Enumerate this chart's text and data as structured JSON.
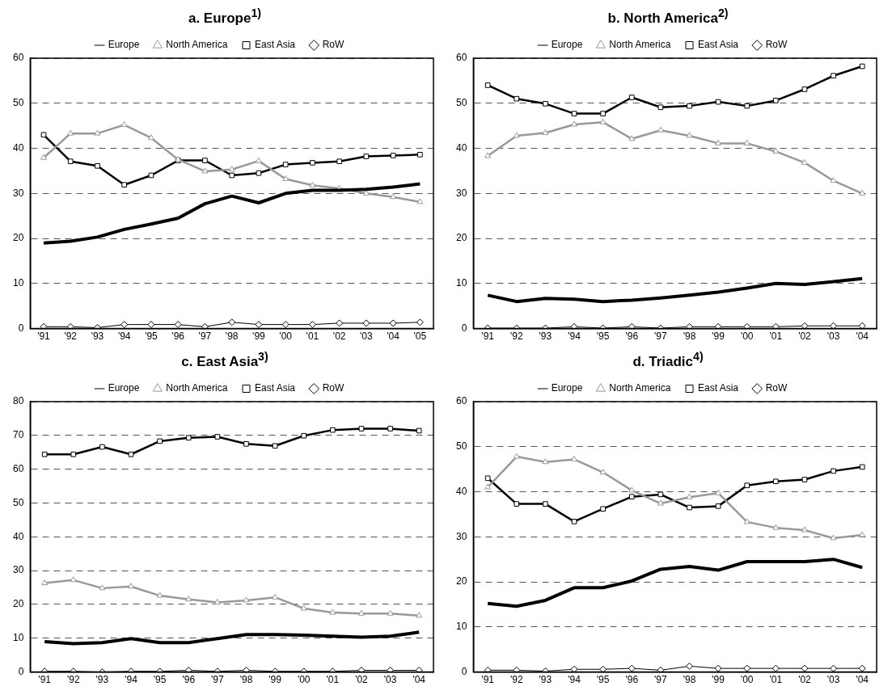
{
  "chart_data": [
    {
      "type": "line",
      "title": "a. Europe$^{1)}$",
      "categories": [
        "'91",
        "'92",
        "'93",
        "'94",
        "'95",
        "'96",
        "'97",
        "'98",
        "'99",
        "'00",
        "'01",
        "'02",
        "'03",
        "'04",
        "'05"
      ],
      "ylim": [
        0,
        60
      ],
      "yticks": [
        0,
        10,
        20,
        30,
        40,
        50,
        60
      ],
      "grid": "y",
      "legend": "top",
      "series": [
        {
          "name": "Europe",
          "color": "#000000",
          "marker": "none",
          "values": [
            19,
            19.4,
            20.3,
            22,
            23.2,
            24.5,
            27.7,
            29.4,
            27.9,
            30,
            30.7,
            30.7,
            30.9,
            31.4,
            32.1
          ]
        },
        {
          "name": "North America",
          "color": "#999999",
          "marker": "triangle",
          "values": [
            37.9,
            43.3,
            43.3,
            45.2,
            42.3,
            37.5,
            34.9,
            35.3,
            37.2,
            33.2,
            31.8,
            31.1,
            30,
            29.2,
            28.1
          ]
        },
        {
          "name": "East Asia",
          "color": "#000000",
          "marker": "square",
          "values": [
            43,
            37.1,
            36.1,
            31.9,
            34,
            37.3,
            37.3,
            34,
            34.5,
            36.4,
            36.8,
            37.1,
            38.2,
            38.4,
            38.6
          ]
        },
        {
          "name": "RoW",
          "color": "#000000",
          "marker": "diamond",
          "values": [
            0.4,
            0.4,
            0.2,
            0.9,
            0.9,
            0.9,
            0.4,
            1.4,
            0.9,
            0.9,
            0.9,
            1.2,
            1.2,
            1.2,
            1.4
          ]
        }
      ]
    },
    {
      "type": "line",
      "title": "b. North America$^{2)}$",
      "categories": [
        "'91",
        "'92",
        "'93",
        "'94",
        "'95",
        "'96",
        "'97",
        "'98",
        "'99",
        "'00",
        "'01",
        "'02",
        "'03",
        "'04"
      ],
      "ylim": [
        0,
        60
      ],
      "yticks": [
        0,
        10,
        20,
        30,
        40,
        50,
        60
      ],
      "grid": "y",
      "legend": "top",
      "series": [
        {
          "name": "Europe",
          "color": "#000000",
          "marker": "none",
          "values": [
            7.4,
            6,
            6.7,
            6.5,
            6,
            6.3,
            6.8,
            7.4,
            8.1,
            9,
            10,
            9.8,
            10.4,
            11.1
          ]
        },
        {
          "name": "North America",
          "color": "#999999",
          "marker": "triangle",
          "values": [
            38.3,
            42.8,
            43.4,
            45.3,
            45.8,
            42.1,
            44,
            42.8,
            41.1,
            41.1,
            39.3,
            36.8,
            32.8,
            30
          ]
        },
        {
          "name": "East Asia",
          "color": "#000000",
          "marker": "square",
          "values": [
            54,
            51,
            49.9,
            47.7,
            47.7,
            51.3,
            49.1,
            49.4,
            50.3,
            49.4,
            50.6,
            53.1,
            56.1,
            58.2
          ]
        },
        {
          "name": "RoW",
          "color": "#000000",
          "marker": "diamond",
          "values": [
            0.1,
            0.1,
            0.1,
            0.4,
            0.1,
            0.4,
            0.1,
            0.4,
            0.4,
            0.4,
            0.4,
            0.6,
            0.6,
            0.6
          ]
        }
      ]
    },
    {
      "type": "line",
      "title": "c. East Asia$^{3)}$",
      "categories": [
        "'91",
        "'92",
        "'93",
        "'94",
        "'95",
        "'96",
        "'97",
        "'98",
        "'99",
        "'00",
        "'01",
        "'02",
        "'03",
        "'04"
      ],
      "ylim": [
        0,
        80
      ],
      "yticks": [
        0,
        10,
        20,
        30,
        40,
        50,
        60,
        70,
        80
      ],
      "grid": "y",
      "legend": "top",
      "series": [
        {
          "name": "Europe",
          "color": "#000000",
          "marker": "none",
          "values": [
            9,
            8.4,
            8.7,
            9.9,
            8.7,
            8.7,
            9.9,
            11.1,
            11.1,
            10.9,
            10.6,
            10.3,
            10.6,
            11.8
          ]
        },
        {
          "name": "North America",
          "color": "#999999",
          "marker": "triangle",
          "values": [
            26.3,
            27.2,
            24.8,
            25.3,
            22.6,
            21.5,
            20.6,
            21.2,
            22.1,
            18.8,
            17.6,
            17.3,
            17.3,
            16.7
          ]
        },
        {
          "name": "East Asia",
          "color": "#000000",
          "marker": "square",
          "values": [
            64.4,
            64.4,
            66.6,
            64.4,
            68.3,
            69.3,
            69.6,
            67.5,
            66.9,
            69.9,
            71.6,
            72,
            72,
            71.4
          ]
        },
        {
          "name": "RoW",
          "color": "#000000",
          "marker": "diamond",
          "values": [
            0.2,
            0.2,
            0,
            0.2,
            0.2,
            0.5,
            0.2,
            0.5,
            0.2,
            0.2,
            0.2,
            0.5,
            0.5,
            0.5
          ]
        }
      ]
    },
    {
      "type": "line",
      "title": "d. Triadic$^{4)}$",
      "categories": [
        "'91",
        "'92",
        "'93",
        "'94",
        "'95",
        "'96",
        "'97",
        "'98",
        "'99",
        "'00",
        "'01",
        "'02",
        "'03",
        "'04"
      ],
      "ylim": [
        0,
        60
      ],
      "yticks": [
        0,
        10,
        20,
        30,
        40,
        50,
        60
      ],
      "grid": "y",
      "legend": "top",
      "series": [
        {
          "name": "Europe",
          "color": "#000000",
          "marker": "none",
          "values": [
            15.2,
            14.6,
            15.9,
            18.7,
            18.7,
            20.2,
            22.8,
            23.4,
            22.6,
            24.5,
            24.5,
            24.5,
            25,
            23.2
          ]
        },
        {
          "name": "North America",
          "color": "#999999",
          "marker": "triangle",
          "values": [
            41,
            47.8,
            46.6,
            47.2,
            44.3,
            40.3,
            37.4,
            38.8,
            39.7,
            33.3,
            32,
            31.5,
            29.7,
            30.4
          ]
        },
        {
          "name": "East Asia",
          "color": "#000000",
          "marker": "square",
          "values": [
            43,
            37.3,
            37.3,
            33.4,
            36.2,
            38.9,
            39.4,
            36.5,
            36.8,
            41.4,
            42.3,
            42.7,
            44.6,
            45.5
          ]
        },
        {
          "name": "RoW",
          "color": "#000000",
          "marker": "diamond",
          "values": [
            0.4,
            0.4,
            0.2,
            0.6,
            0.6,
            0.8,
            0.4,
            1.3,
            0.8,
            0.8,
            0.8,
            0.8,
            0.8,
            0.8
          ]
        }
      ]
    }
  ]
}
